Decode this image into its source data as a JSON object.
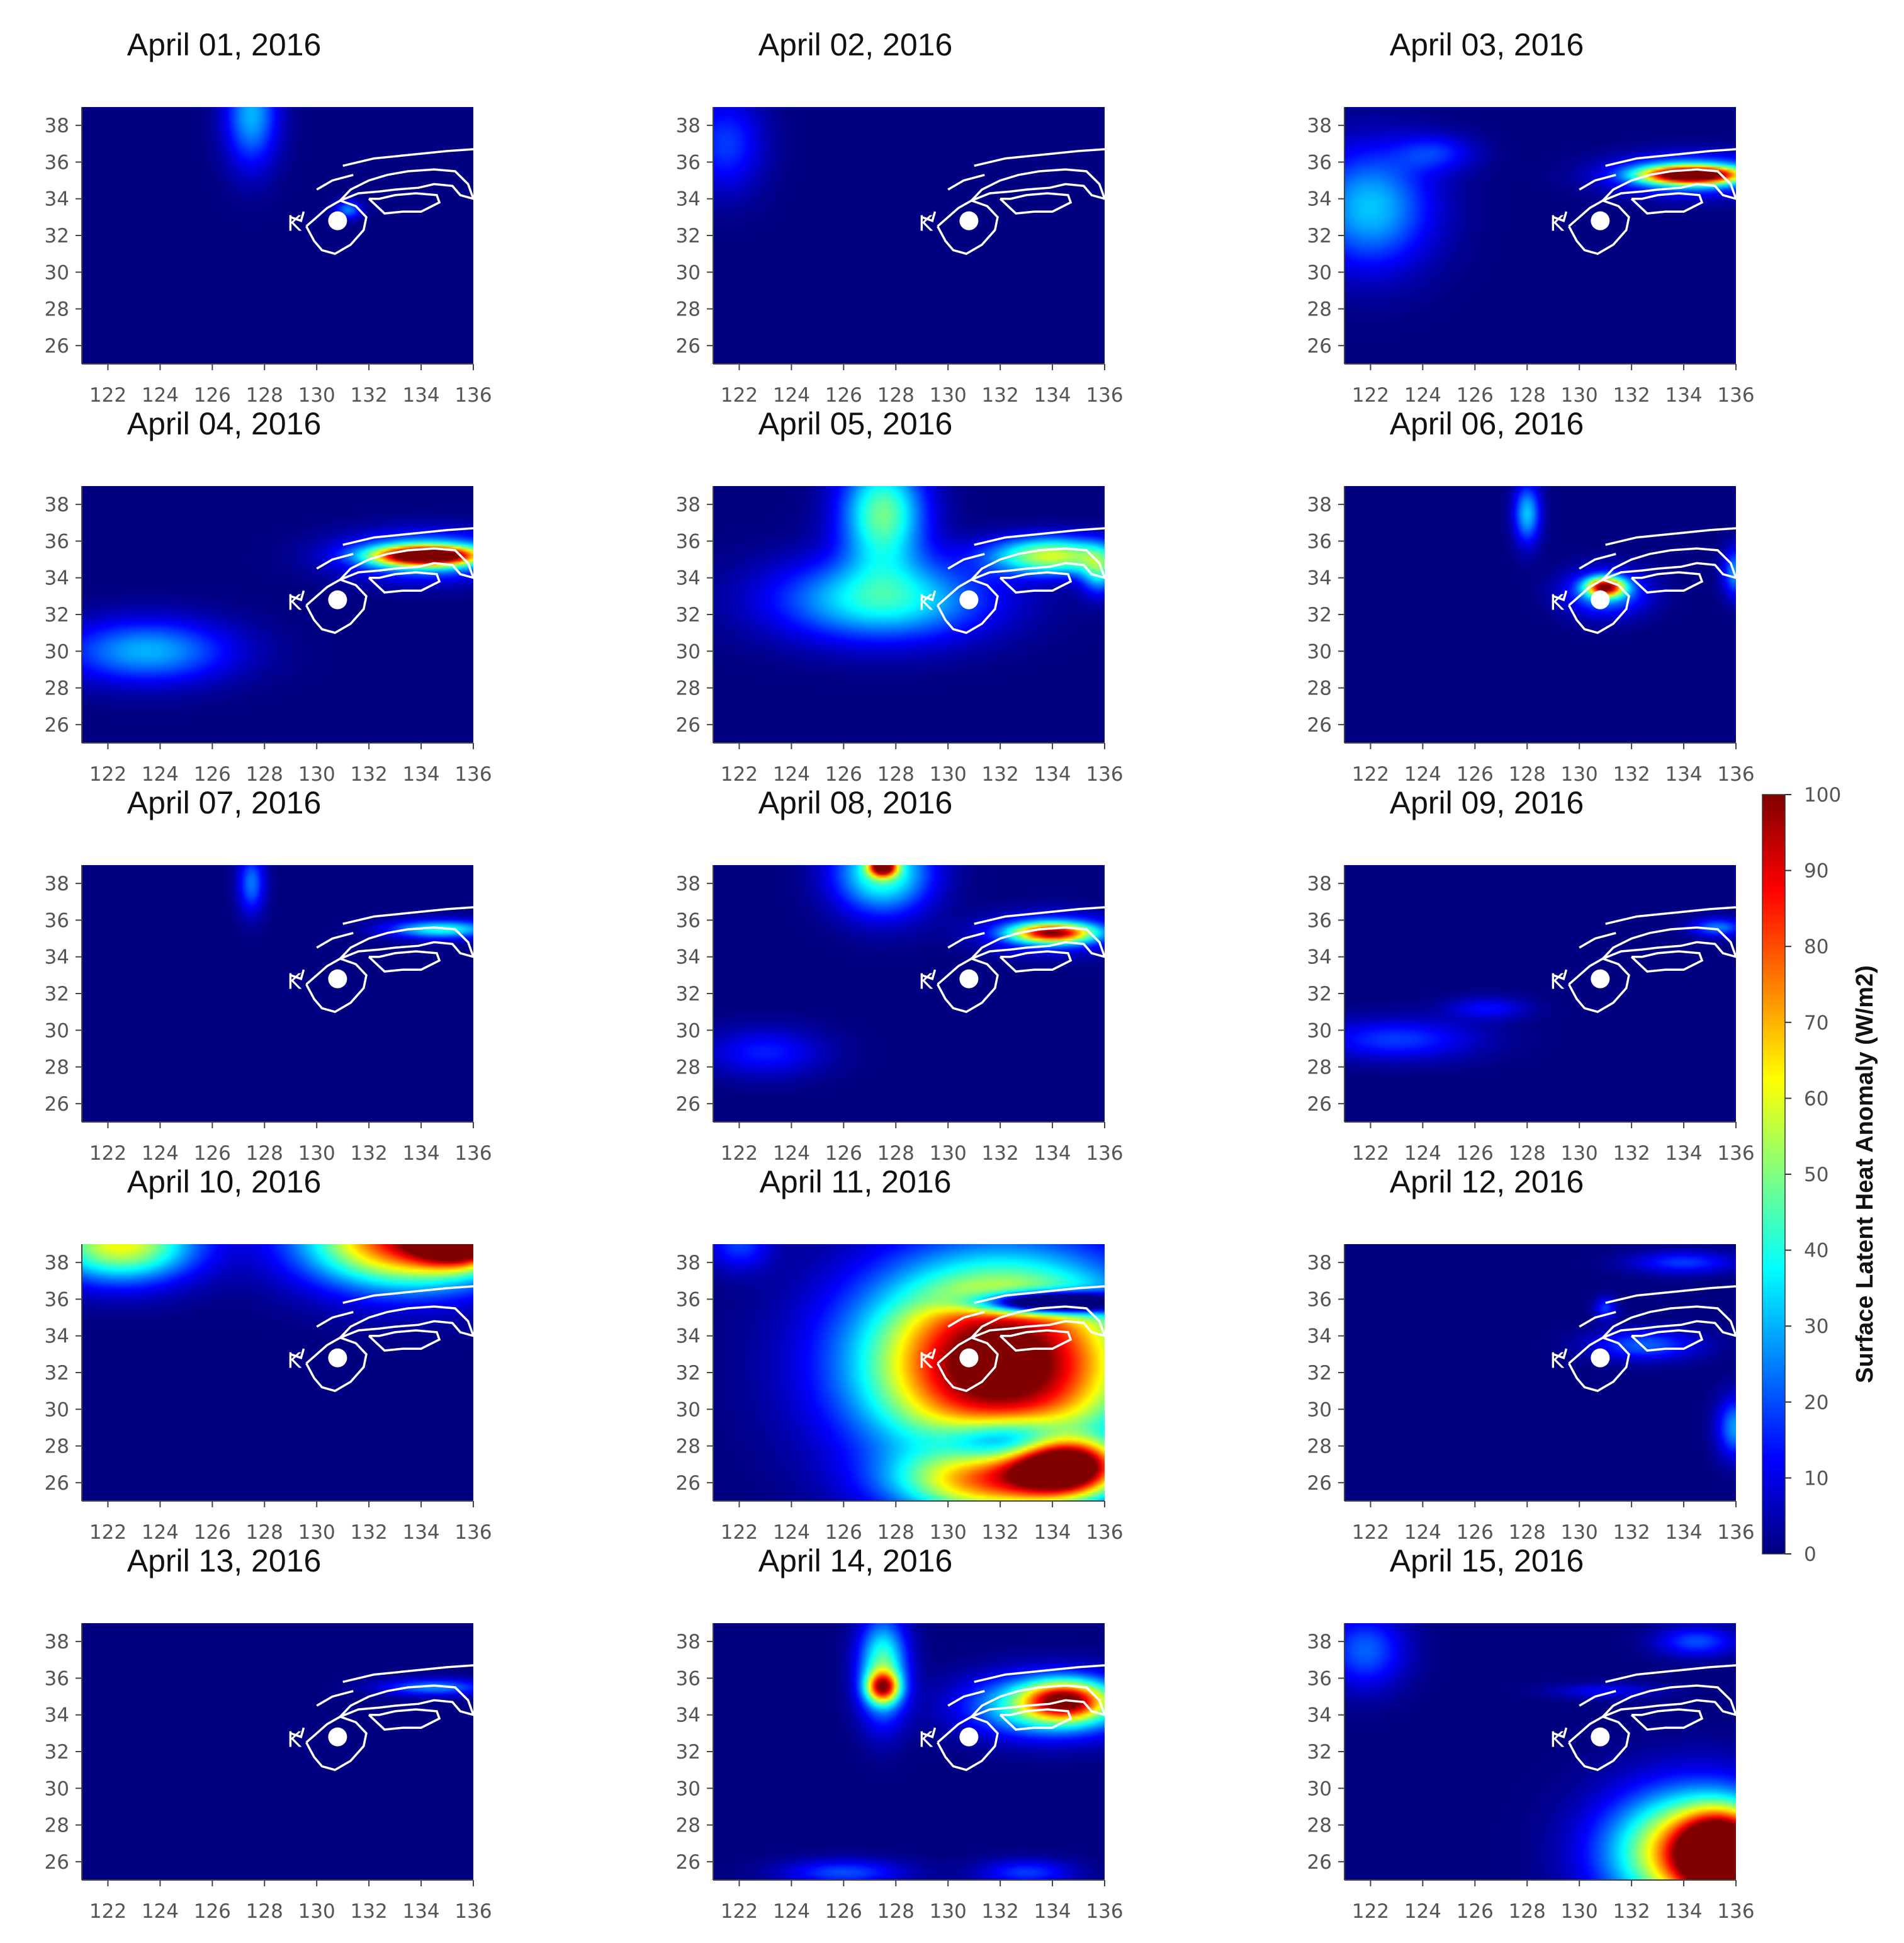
{
  "chart_data": {
    "type": "heatmap",
    "figure": {
      "colorbar": {
        "label": "Surface Latent Heat Anomaly (W/m2)",
        "min": 0,
        "max": 100,
        "ticks": [
          "0",
          "10",
          "20",
          "30",
          "40",
          "50",
          "60",
          "70",
          "80",
          "90",
          "100"
        ],
        "colormap": "jet",
        "colors": [
          "#00007f",
          "#0000ff",
          "#007fff",
          "#00ffff",
          "#7fff7f",
          "#ffff00",
          "#ff7f00",
          "#ff0000",
          "#7f0000"
        ]
      },
      "x_ticks": [
        "122",
        "124",
        "126",
        "128",
        "130",
        "132",
        "134",
        "136"
      ],
      "y_ticks": [
        "38",
        "36",
        "34",
        "32",
        "30",
        "28",
        "26"
      ],
      "xlim": [
        121,
        136
      ],
      "ylim": [
        25,
        39
      ],
      "marker_label": "K",
      "marker_lon": 130.8,
      "marker_lat": 32.8,
      "coastline_color": "#ffffff"
    },
    "panels": [
      {
        "title": "April 01, 2016",
        "blobs": [
          {
            "lon": 127.5,
            "lat": 38.6,
            "rx": 1.0,
            "ry": 2.8,
            "v": 30
          },
          {
            "lon": 131.2,
            "lat": 33.4,
            "rx": 0.5,
            "ry": 0.5,
            "v": 25
          }
        ]
      },
      {
        "title": "April 02, 2016",
        "blobs": [
          {
            "lon": 121.5,
            "lat": 37.0,
            "rx": 1.4,
            "ry": 2.6,
            "v": 18
          }
        ]
      },
      {
        "title": "April 03, 2016",
        "blobs": [
          {
            "lon": 122.0,
            "lat": 33.5,
            "rx": 2.3,
            "ry": 3.2,
            "v": 32
          },
          {
            "lon": 124.5,
            "lat": 36.5,
            "rx": 1.5,
            "ry": 1.0,
            "v": 15
          },
          {
            "lon": 134.3,
            "lat": 35.3,
            "rx": 1.8,
            "ry": 0.45,
            "v": 95
          },
          {
            "lon": 134.3,
            "lat": 35.3,
            "rx": 2.8,
            "ry": 1.0,
            "v": 40
          }
        ]
      },
      {
        "title": "April 04, 2016",
        "blobs": [
          {
            "lon": 123.5,
            "lat": 30.0,
            "rx": 3.2,
            "ry": 1.7,
            "v": 30
          },
          {
            "lon": 134.2,
            "lat": 35.2,
            "rx": 1.9,
            "ry": 0.5,
            "v": 100
          },
          {
            "lon": 134.2,
            "lat": 35.2,
            "rx": 3.0,
            "ry": 1.2,
            "v": 40
          }
        ]
      },
      {
        "title": "April 05, 2016",
        "blobs": [
          {
            "lon": 127.5,
            "lat": 32.8,
            "rx": 4.0,
            "ry": 2.2,
            "v": 40
          },
          {
            "lon": 127.5,
            "lat": 37.5,
            "rx": 1.6,
            "ry": 3.0,
            "v": 48
          },
          {
            "lon": 134.0,
            "lat": 35.2,
            "rx": 2.3,
            "ry": 1.0,
            "v": 58
          },
          {
            "lon": 135.8,
            "lat": 34.3,
            "rx": 0.7,
            "ry": 1.2,
            "v": 32
          }
        ]
      },
      {
        "title": "April 06, 2016",
        "blobs": [
          {
            "lon": 128.0,
            "lat": 37.5,
            "rx": 0.5,
            "ry": 1.6,
            "v": 32
          },
          {
            "lon": 131.0,
            "lat": 33.5,
            "rx": 0.7,
            "ry": 0.5,
            "v": 80
          },
          {
            "lon": 131.0,
            "lat": 33.2,
            "rx": 1.5,
            "ry": 1.2,
            "v": 30
          },
          {
            "lon": 136.0,
            "lat": 34.3,
            "rx": 0.5,
            "ry": 1.3,
            "v": 28
          }
        ]
      },
      {
        "title": "April 07, 2016",
        "blobs": [
          {
            "lon": 127.5,
            "lat": 38.0,
            "rx": 0.5,
            "ry": 1.6,
            "v": 24
          },
          {
            "lon": 134.8,
            "lat": 35.5,
            "rx": 2.0,
            "ry": 0.5,
            "v": 40
          }
        ]
      },
      {
        "title": "April 08, 2016",
        "blobs": [
          {
            "lon": 127.5,
            "lat": 38.6,
            "rx": 1.8,
            "ry": 2.2,
            "v": 45
          },
          {
            "lon": 127.5,
            "lat": 38.9,
            "rx": 0.5,
            "ry": 0.5,
            "v": 85
          },
          {
            "lon": 134.0,
            "lat": 35.3,
            "rx": 1.5,
            "ry": 0.5,
            "v": 72
          },
          {
            "lon": 134.0,
            "lat": 35.3,
            "rx": 2.4,
            "ry": 1.0,
            "v": 30
          },
          {
            "lon": 123.0,
            "lat": 28.8,
            "rx": 2.2,
            "ry": 1.3,
            "v": 15
          }
        ]
      },
      {
        "title": "April 09, 2016",
        "blobs": [
          {
            "lon": 123.0,
            "lat": 29.5,
            "rx": 3.0,
            "ry": 1.1,
            "v": 18
          },
          {
            "lon": 126.5,
            "lat": 31.2,
            "rx": 1.5,
            "ry": 0.6,
            "v": 13
          },
          {
            "lon": 135.3,
            "lat": 35.6,
            "rx": 1.0,
            "ry": 0.5,
            "v": 25
          }
        ]
      },
      {
        "title": "April 10, 2016",
        "blobs": [
          {
            "lon": 122.5,
            "lat": 39.0,
            "rx": 2.8,
            "ry": 2.0,
            "v": 62
          },
          {
            "lon": 133.5,
            "lat": 39.3,
            "rx": 3.8,
            "ry": 2.6,
            "v": 90
          },
          {
            "lon": 135.5,
            "lat": 39.3,
            "rx": 1.6,
            "ry": 1.3,
            "v": 100
          }
        ]
      },
      {
        "title": "April 11, 2016",
        "blobs": [
          {
            "lon": 132.0,
            "lat": 32.5,
            "rx": 5.0,
            "ry": 5.2,
            "v": 115
          },
          {
            "lon": 133.8,
            "lat": 35.8,
            "rx": 2.7,
            "ry": 0.6,
            "v": -95
          },
          {
            "lon": 133.0,
            "lat": 28.2,
            "rx": 3.0,
            "ry": 1.3,
            "v": -55
          },
          {
            "lon": 134.5,
            "lat": 27.0,
            "rx": 2.0,
            "ry": 1.6,
            "v": 110
          },
          {
            "lon": 131.5,
            "lat": 26.0,
            "rx": 3.5,
            "ry": 1.8,
            "v": 55
          },
          {
            "lon": 122.0,
            "lat": 39.0,
            "rx": 1.2,
            "ry": 1.4,
            "v": 18
          }
        ]
      },
      {
        "title": "April 12, 2016",
        "blobs": [
          {
            "lon": 134.0,
            "lat": 38.0,
            "rx": 2.0,
            "ry": 0.6,
            "v": 18
          },
          {
            "lon": 132.5,
            "lat": 33.5,
            "rx": 2.0,
            "ry": 0.8,
            "v": 22
          },
          {
            "lon": 136.0,
            "lat": 29.0,
            "rx": 0.7,
            "ry": 1.6,
            "v": 28
          },
          {
            "lon": 131.0,
            "lat": 35.5,
            "rx": 0.4,
            "ry": 0.6,
            "v": 18
          }
        ]
      },
      {
        "title": "April 13, 2016",
        "blobs": [
          {
            "lon": 134.5,
            "lat": 35.5,
            "rx": 2.0,
            "ry": 0.45,
            "v": 26
          }
        ]
      },
      {
        "title": "April 14, 2016",
        "blobs": [
          {
            "lon": 127.5,
            "lat": 36.5,
            "rx": 0.9,
            "ry": 2.7,
            "v": 48
          },
          {
            "lon": 127.5,
            "lat": 35.5,
            "rx": 0.6,
            "ry": 0.8,
            "v": 62
          },
          {
            "lon": 134.0,
            "lat": 34.5,
            "rx": 3.0,
            "ry": 1.6,
            "v": 52
          },
          {
            "lon": 134.5,
            "lat": 34.8,
            "rx": 1.5,
            "ry": 1.0,
            "v": 62
          },
          {
            "lon": 126.0,
            "lat": 25.4,
            "rx": 2.3,
            "ry": 0.7,
            "v": 20
          },
          {
            "lon": 133.0,
            "lat": 25.4,
            "rx": 1.8,
            "ry": 0.7,
            "v": 18
          }
        ]
      },
      {
        "title": "April 15, 2016",
        "blobs": [
          {
            "lon": 121.8,
            "lat": 37.5,
            "rx": 1.5,
            "ry": 2.0,
            "v": 22
          },
          {
            "lon": 134.5,
            "lat": 38.0,
            "rx": 1.5,
            "ry": 0.8,
            "v": 20
          },
          {
            "lon": 131.0,
            "lat": 35.3,
            "rx": 2.0,
            "ry": 0.4,
            "v": 12
          },
          {
            "lon": 134.5,
            "lat": 26.5,
            "rx": 3.2,
            "ry": 3.2,
            "v": 82
          },
          {
            "lon": 135.5,
            "lat": 26.3,
            "rx": 1.5,
            "ry": 2.0,
            "v": 108
          }
        ]
      }
    ]
  }
}
